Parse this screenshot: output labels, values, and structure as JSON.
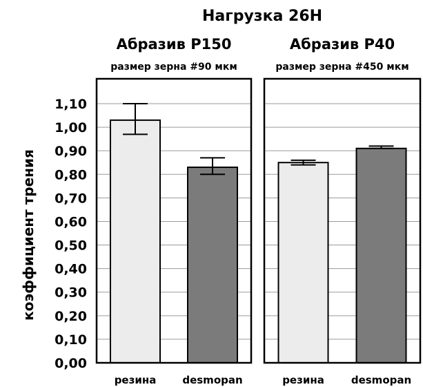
{
  "chart_data": {
    "type": "bar",
    "title": "Нагрузка 26Н",
    "ylabel": "коэффициент трения",
    "ylim": [
      0,
      1.1
    ],
    "yticks": [
      "0,00",
      "0,10",
      "0,20",
      "0,30",
      "0,40",
      "0,50",
      "0,60",
      "0,70",
      "0,80",
      "0,90",
      "1,00",
      "1,10"
    ],
    "grid": true,
    "colors": {
      "light": "#ececec",
      "dark": "#7b7b7b",
      "frame": "#000000",
      "grid": "#9a9a9a"
    },
    "panels": [
      {
        "title": "Абразив P150",
        "subtitle": "размер зерна #90 мкм",
        "categories": [
          "резина",
          "desmopan"
        ],
        "values": [
          1.03,
          0.83
        ],
        "err_low": [
          0.97,
          0.8
        ],
        "err_high": [
          1.1,
          0.87
        ]
      },
      {
        "title": "Абразив P40",
        "subtitle": "размер зерна #450 мкм",
        "categories": [
          "резина",
          "desmopan"
        ],
        "values": [
          0.85,
          0.91
        ],
        "err_low": [
          0.84,
          0.91
        ],
        "err_high": [
          0.86,
          0.92
        ]
      }
    ]
  }
}
